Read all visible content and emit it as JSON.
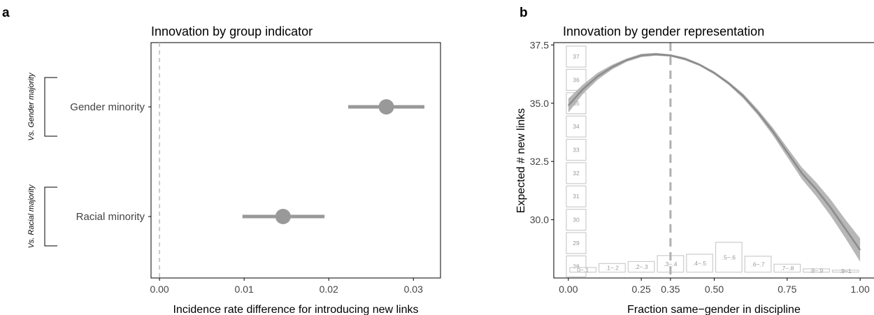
{
  "panels": {
    "a": {
      "label": "a",
      "title": "Innovation by group indicator"
    },
    "b": {
      "label": "b",
      "title": "Innovation by gender representation"
    }
  },
  "chart_data": [
    {
      "type": "scatter",
      "subtype": "point-range",
      "title": "Innovation by group indicator",
      "xlabel": "Incidence rate difference for introducing new links",
      "xlim": [
        -0.001,
        0.0332
      ],
      "xticks": [
        "0.00",
        "0.01",
        "0.02",
        "0.03"
      ],
      "xtick_values": [
        0,
        0.01,
        0.02,
        0.03
      ],
      "reference_line": {
        "x": 0,
        "style": "dashed"
      },
      "grid": false,
      "color": "#999999",
      "points": [
        {
          "category": "Gender minority",
          "group": "Vs. Gender majority",
          "estimate": 0.0268,
          "ci": [
            0.0223,
            0.0313
          ]
        },
        {
          "category": "Racial minority",
          "group": "Vs. Racial majority",
          "estimate": 0.0146,
          "ci": [
            0.0098,
            0.0195
          ]
        }
      ]
    },
    {
      "type": "line",
      "title": "Innovation by gender representation",
      "xlabel": "Fraction same−gender in discipline",
      "ylabel": "Expected # new links",
      "xlim": [
        -0.05,
        1.05
      ],
      "ylim": [
        27.5,
        37.6
      ],
      "xticks": [
        "0.00",
        "0.25",
        "0.35",
        "0.50",
        "0.75",
        "1.00"
      ],
      "xtick_values": [
        0,
        0.25,
        0.35,
        0.5,
        0.75,
        1.0
      ],
      "yticks": [
        "30.0",
        "32.5",
        "35.0",
        "37.5"
      ],
      "ytick_values": [
        30,
        32.5,
        35,
        37.5
      ],
      "reference_line": {
        "x": 0.35,
        "style": "dashed"
      },
      "grid": false,
      "line_color": "#8c8c8c",
      "band_color": "#aaaaaa",
      "series": [
        {
          "x": [
            0,
            0.05,
            0.1,
            0.15,
            0.2,
            0.25,
            0.3,
            0.35,
            0.4,
            0.45,
            0.5,
            0.55,
            0.6,
            0.65,
            0.7,
            0.75,
            0.8,
            0.85,
            0.9,
            0.95,
            1.0
          ],
          "y": [
            34.9,
            35.6,
            36.15,
            36.55,
            36.85,
            37.05,
            37.1,
            37.05,
            36.9,
            36.65,
            36.3,
            35.85,
            35.3,
            34.6,
            33.8,
            32.9,
            32.0,
            31.3,
            30.5,
            29.6,
            28.7
          ],
          "lower": [
            34.6,
            35.4,
            36.0,
            36.45,
            36.78,
            36.98,
            37.04,
            37.0,
            36.84,
            36.6,
            36.24,
            35.78,
            35.2,
            34.48,
            33.64,
            32.7,
            31.75,
            31.0,
            30.15,
            29.2,
            28.2
          ],
          "upper": [
            35.2,
            35.8,
            36.3,
            36.65,
            36.92,
            37.12,
            37.16,
            37.1,
            36.96,
            36.7,
            36.36,
            35.92,
            35.4,
            34.72,
            33.96,
            33.1,
            32.25,
            31.6,
            30.85,
            30.0,
            29.2
          ]
        }
      ],
      "x_distribution": {
        "labels": [
          "0−.1",
          ".1−.2",
          ".2−.3",
          ".3−.4",
          ".4−.5",
          ".5−.6",
          ".6−.7",
          ".7−.8",
          ".8−.9",
          ".9−1"
        ],
        "centers": [
          0.05,
          0.15,
          0.25,
          0.35,
          0.45,
          0.55,
          0.65,
          0.75,
          0.85,
          0.95
        ],
        "heights": [
          0.35,
          0.65,
          0.8,
          1.25,
          1.35,
          2.25,
          1.2,
          0.6,
          0.25,
          0.15
        ]
      },
      "y_distribution": {
        "labels": [
          "28",
          "29",
          "30",
          "31",
          "32",
          "33",
          "34",
          "35",
          "36",
          "37"
        ],
        "centers": [
          28,
          29,
          30,
          31,
          32,
          33,
          34,
          35,
          36,
          37
        ]
      }
    }
  ]
}
